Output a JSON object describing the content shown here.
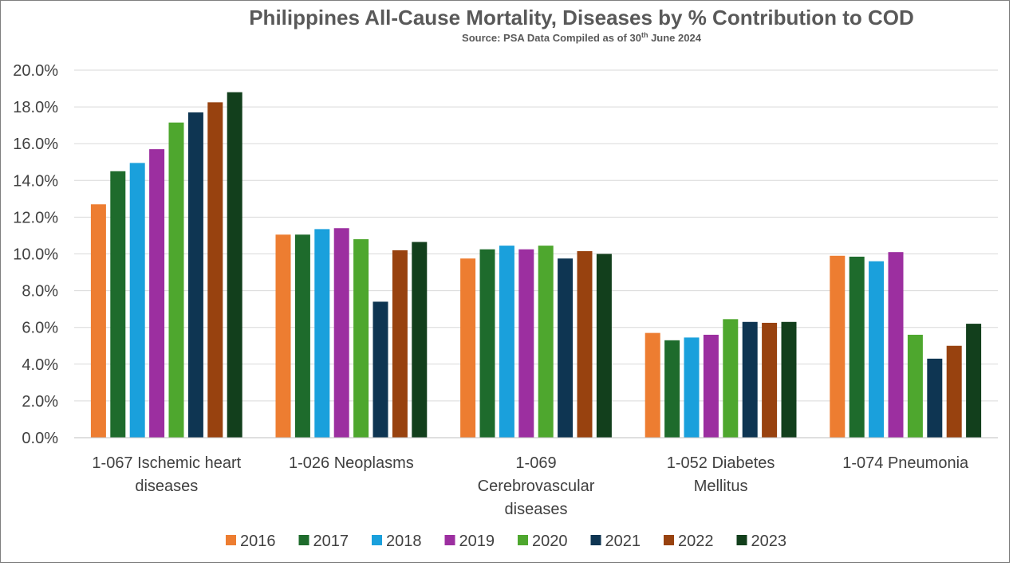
{
  "chart_data": {
    "type": "bar",
    "title": "Philippines All-Cause Mortality, Diseases by % Contribution to COD",
    "subtitle": {
      "before": "Source: PSA Data Compiled as of 30",
      "sup": "th",
      "after": " June 2024"
    },
    "xlabel": "",
    "ylabel": "",
    "ylim": [
      0,
      20
    ],
    "yticks": [
      "0.0%",
      "2.0%",
      "4.0%",
      "6.0%",
      "8.0%",
      "10.0%",
      "12.0%",
      "14.0%",
      "16.0%",
      "18.0%",
      "20.0%"
    ],
    "grid": true,
    "legend_position": "bottom",
    "categories": [
      {
        "lines": [
          "1-067  Ischemic heart",
          "diseases"
        ]
      },
      {
        "lines": [
          "1-026  Neoplasms"
        ]
      },
      {
        "lines": [
          "1-069",
          "Cerebrovascular",
          "diseases"
        ]
      },
      {
        "lines": [
          "1-052  Diabetes",
          "Mellitus"
        ]
      },
      {
        "lines": [
          "1-074  Pneumonia"
        ]
      }
    ],
    "series": [
      {
        "name": "2016",
        "color": "#ed7d31",
        "values": [
          12.7,
          11.05,
          9.75,
          5.7,
          9.9
        ]
      },
      {
        "name": "2017",
        "color": "#1e6b2c",
        "values": [
          14.5,
          11.05,
          10.25,
          5.3,
          9.85
        ]
      },
      {
        "name": "2018",
        "color": "#1aa0dc",
        "values": [
          14.95,
          11.35,
          10.45,
          5.45,
          9.6
        ]
      },
      {
        "name": "2019",
        "color": "#9c2fa0",
        "values": [
          15.7,
          11.4,
          10.25,
          5.6,
          10.1
        ]
      },
      {
        "name": "2020",
        "color": "#4ea72e",
        "values": [
          17.15,
          10.8,
          10.45,
          6.45,
          5.6
        ]
      },
      {
        "name": "2021",
        "color": "#0e3552",
        "values": [
          17.7,
          7.4,
          9.75,
          6.3,
          4.3
        ]
      },
      {
        "name": "2022",
        "color": "#98420f",
        "values": [
          18.25,
          10.2,
          10.15,
          6.25,
          5.0
        ]
      },
      {
        "name": "2023",
        "color": "#123f1c",
        "values": [
          18.8,
          10.65,
          10.0,
          6.3,
          6.2
        ]
      }
    ]
  }
}
